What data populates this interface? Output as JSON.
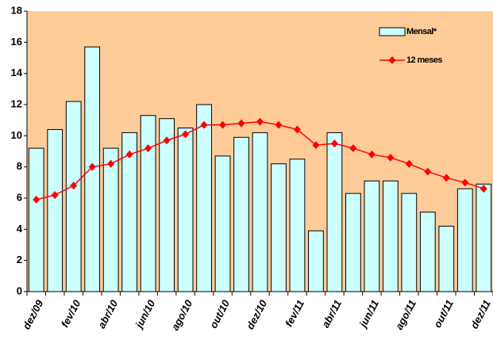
{
  "chart_data": {
    "type": "bar-line",
    "categories": [
      "dez/09",
      null,
      "fev/10",
      null,
      "abr/10",
      null,
      "jun/10",
      null,
      "ago/10",
      null,
      "out/10",
      null,
      "dez/10",
      null,
      "fev/11",
      null,
      "abr/11",
      null,
      "jun/11",
      null,
      "ago/11",
      null,
      "out/11",
      null,
      "dez/11"
    ],
    "series": [
      {
        "name": "Mensal*",
        "type": "bar",
        "color": "#ccffff",
        "values": [
          9.2,
          10.4,
          12.2,
          15.7,
          9.2,
          10.2,
          11.3,
          11.1,
          10.5,
          12.0,
          8.7,
          9.9,
          10.2,
          8.2,
          8.5,
          3.9,
          10.2,
          6.3,
          7.1,
          7.1,
          6.3,
          5.1,
          4.2,
          6.6,
          6.9
        ]
      },
      {
        "name": "12 meses",
        "type": "line",
        "color": "#ff0000",
        "values": [
          5.9,
          6.2,
          6.8,
          8.0,
          8.2,
          8.8,
          9.2,
          9.7,
          10.1,
          10.7,
          10.7,
          10.8,
          10.9,
          10.7,
          10.4,
          9.4,
          9.5,
          9.2,
          8.8,
          8.6,
          8.2,
          7.7,
          7.3,
          7.0,
          6.6
        ]
      }
    ],
    "ylim": [
      0,
      18
    ],
    "yticks": [
      0,
      2,
      4,
      6,
      8,
      10,
      12,
      14,
      16,
      18
    ],
    "background": "#ffcc99"
  }
}
